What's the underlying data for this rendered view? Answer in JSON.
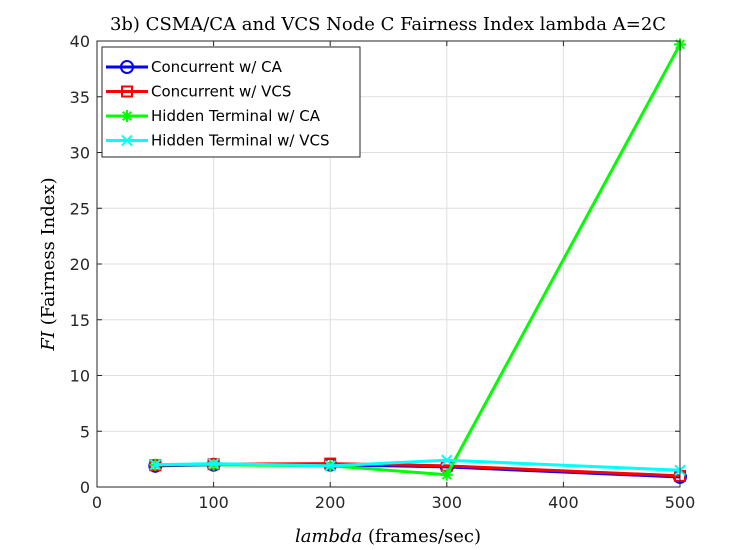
{
  "chart_data": {
    "type": "line",
    "title": "3b) CSMA/CA and VCS Node C Fairness Index lambda A=2C",
    "xlabel": {
      "var": "lambda",
      "unit": " (frames/sec)"
    },
    "ylabel": {
      "var": "FI",
      "unit": " (Fairness Index)"
    },
    "xlim": [
      0,
      500
    ],
    "ylim": [
      0,
      40
    ],
    "xticks": [
      0,
      100,
      200,
      300,
      400,
      500
    ],
    "yticks": [
      0,
      5,
      10,
      15,
      20,
      25,
      30,
      35,
      40
    ],
    "grid": true,
    "legend_position": "top-left",
    "x": [
      50,
      100,
      200,
      300,
      500
    ],
    "series": [
      {
        "name": "Concurrent w/ CA",
        "color": "#0000ff",
        "marker": "circle",
        "values": [
          1.9,
          2.0,
          2.0,
          1.8,
          0.9
        ]
      },
      {
        "name": "Concurrent w/ VCS",
        "color": "#ff0000",
        "marker": "square",
        "values": [
          1.95,
          2.05,
          2.1,
          1.9,
          1.0
        ]
      },
      {
        "name": "Hidden Terminal w/ CA",
        "color": "#00ff00",
        "marker": "asterisk",
        "values": [
          2.0,
          2.0,
          1.9,
          1.1,
          39.7
        ]
      },
      {
        "name": "Hidden Terminal w/ VCS",
        "color": "#00ffff",
        "marker": "cross",
        "values": [
          2.0,
          2.1,
          1.9,
          2.4,
          1.5
        ]
      }
    ]
  }
}
